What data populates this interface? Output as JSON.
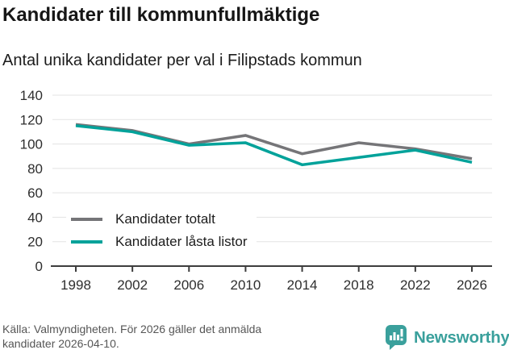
{
  "header": {
    "title": "Kandidater till kommunfullmäktige",
    "subtitle": "Antal unika kandidater per val i Filipstads kommun"
  },
  "chart_data": {
    "type": "line",
    "title": "Kandidater till kommunfullmäktige",
    "subtitle": "Antal unika kandidater per val i Filipstads kommun",
    "x": [
      1998,
      2002,
      2006,
      2010,
      2014,
      2018,
      2022,
      2026
    ],
    "xtick_labels": [
      "1998",
      "2002",
      "2006",
      "2010",
      "2014",
      "2018",
      "2022",
      "2026"
    ],
    "series": [
      {
        "name": "Kandidater totalt",
        "color": "#757578",
        "values": [
          116,
          111,
          100,
          107,
          92,
          101,
          96,
          88
        ]
      },
      {
        "name": "Kandidater låsta listor",
        "color": "#00a29a",
        "values": [
          115,
          110,
          99,
          101,
          83,
          89,
          95,
          85
        ]
      }
    ],
    "ylim": [
      0,
      140
    ],
    "ytick_step": 20,
    "xlabel": "",
    "ylabel": "",
    "grid": "horizontal",
    "legend_position": "inside-bottom-left"
  },
  "footer": {
    "source": "Källa: Valmyndigheten. För 2026 gäller det anmälda kandidater 2026-04-10.",
    "logo_text": "Newsworthy",
    "logo_color": "#3aa09c"
  },
  "colors": {
    "grid_line": "#e3e3e3",
    "axis_line": "#3d3d3d",
    "tick_label": "#2e2e2e"
  }
}
